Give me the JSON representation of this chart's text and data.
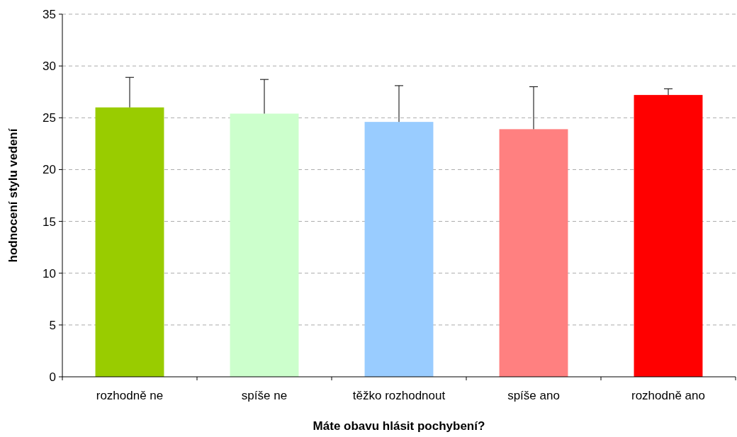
{
  "chart_data": {
    "type": "bar",
    "xlabel": "Máte obavu hlásit pochybení?",
    "ylabel": "hodnocení stylu vedení",
    "categories": [
      "rozhodně ne",
      "spíše ne",
      "těžko rozhodnout",
      "spíše ano",
      "rozhodně ano"
    ],
    "values": [
      26.0,
      25.4,
      24.6,
      23.9,
      27.2
    ],
    "colors": [
      "#99cc00",
      "#ccffcc",
      "#99ccff",
      "#ff8080",
      "#ff0000"
    ],
    "errors": [
      [
        26.0,
        28.9
      ],
      [
        25.4,
        28.7
      ],
      [
        24.6,
        28.1
      ],
      [
        23.9,
        28.0
      ],
      [
        27.2,
        27.8
      ]
    ],
    "ylim": [
      0,
      35
    ],
    "yticks": [
      0,
      5,
      10,
      15,
      20,
      25,
      30,
      35
    ],
    "grid": "y"
  }
}
